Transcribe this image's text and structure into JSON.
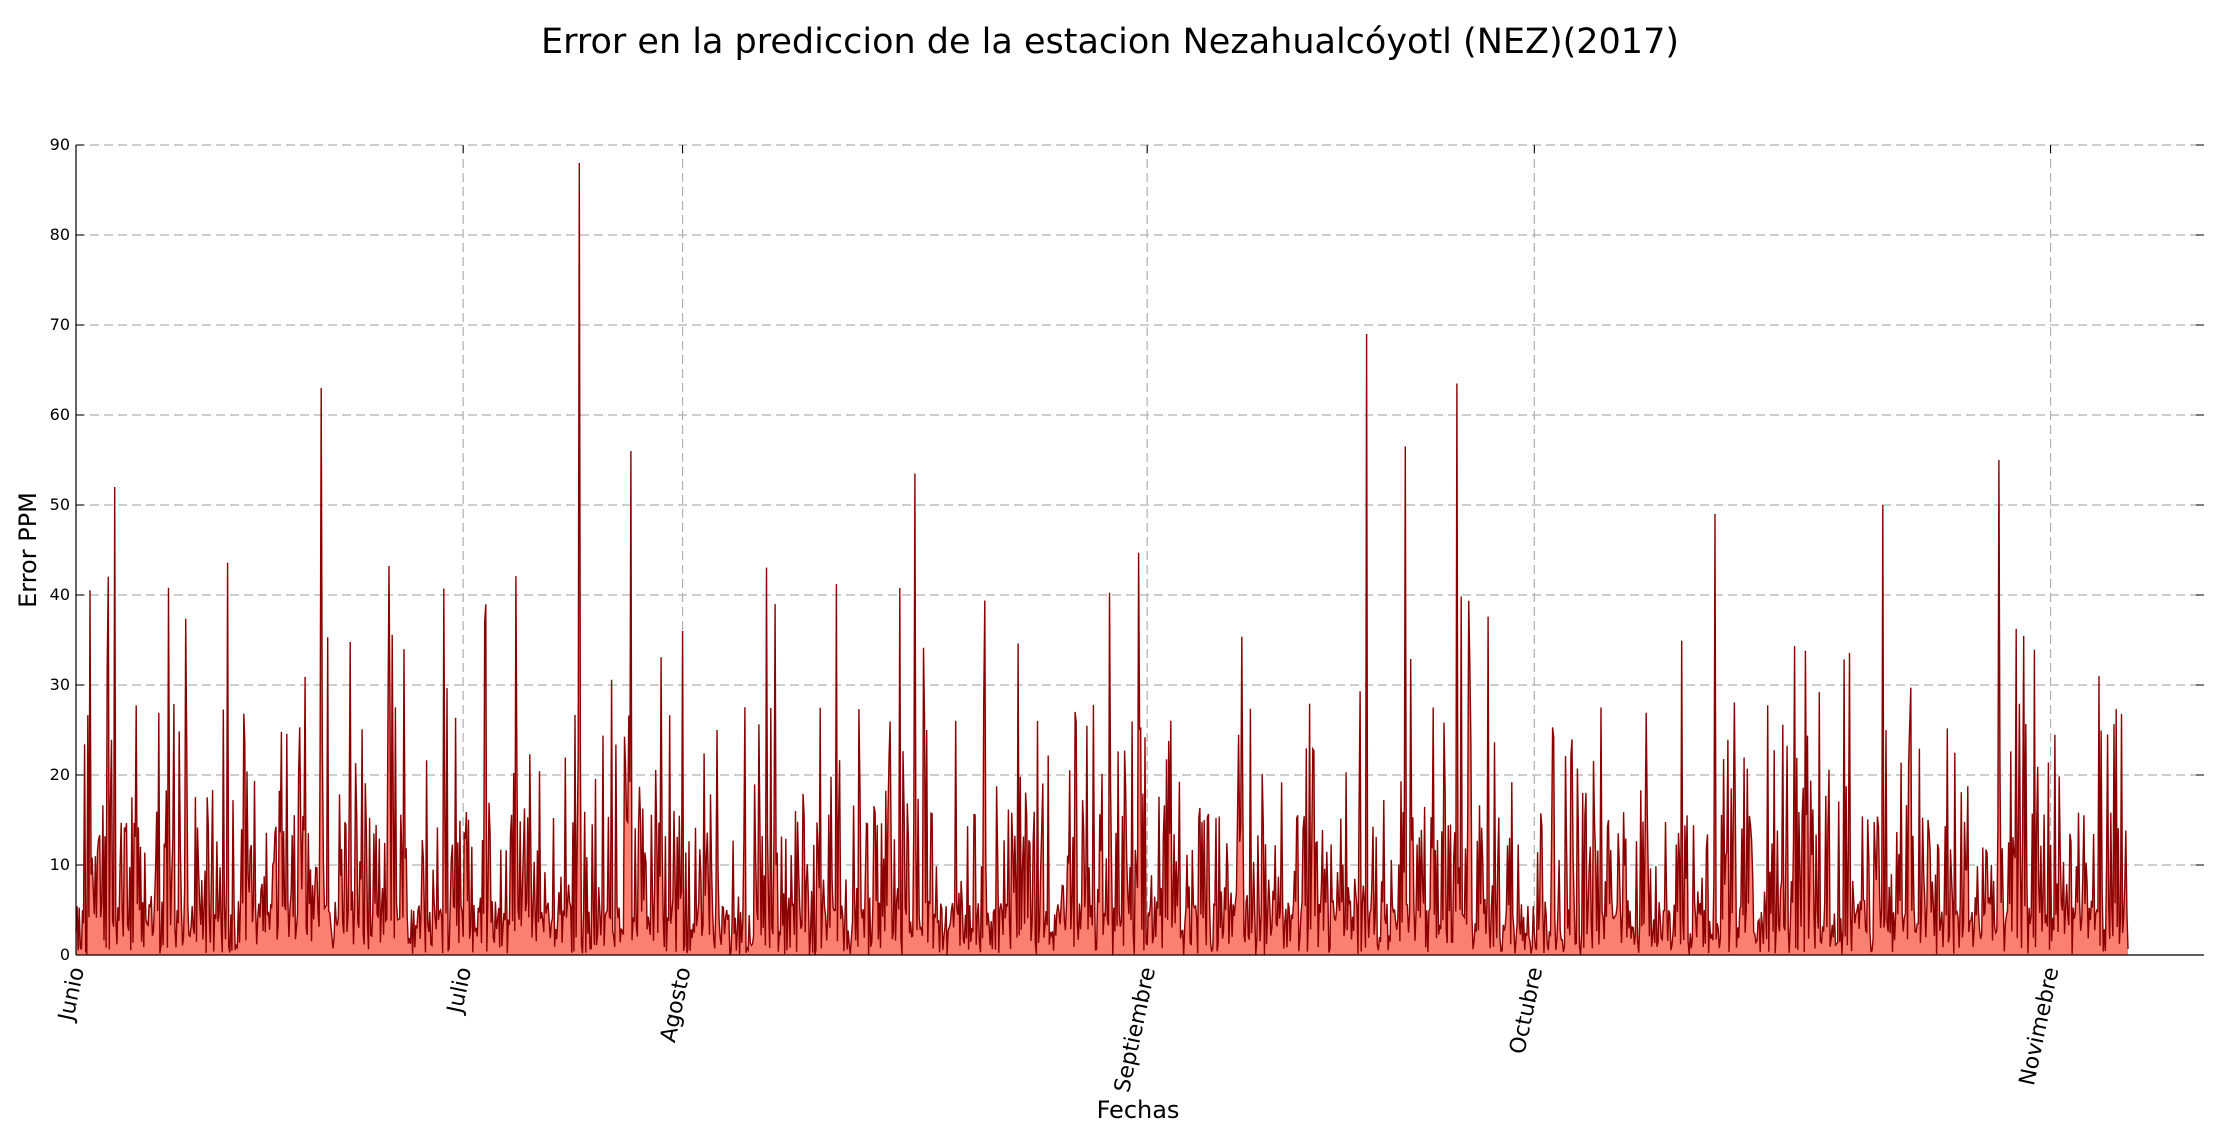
{
  "chart_data": {
    "type": "area",
    "title": "Error en la prediccion de la estacion Nezahualcóyotl (NEZ)(2017)",
    "xlabel": "Fechas",
    "ylabel": "Error PPM",
    "ylim": [
      0,
      90
    ],
    "yticks": [
      "0",
      "10",
      "20",
      "30",
      "40",
      "50",
      "60",
      "70",
      "80",
      "90"
    ],
    "x_ticks": [
      {
        "label": "Junio",
        "date": "2017-06-01"
      },
      {
        "label": "Julio",
        "date": "2017-07-01"
      },
      {
        "label": "Agosto",
        "date": "2017-07-18"
      },
      {
        "label": "Septiembre",
        "date": "2017-08-23"
      },
      {
        "label": "Octubre",
        "date": "2017-09-22"
      },
      {
        "label": "Novimebre",
        "date": "2017-11-01"
      }
    ],
    "x_range": [
      "2017-06-01",
      "2017-11-07"
    ],
    "line_color": "#8b0000",
    "fill_color": "#fa8072",
    "grid": true,
    "series": [
      {
        "values_approx_peaks": [
          {
            "date": "2017-06-04",
            "value": 52
          },
          {
            "date": "2017-06-20",
            "value": 63
          },
          {
            "date": "2017-07-10",
            "value": 88
          },
          {
            "date": "2017-07-14",
            "value": 56
          },
          {
            "date": "2017-08-05",
            "value": 53.5
          },
          {
            "date": "2017-09-09",
            "value": 69
          },
          {
            "date": "2017-09-12",
            "value": 56.5
          },
          {
            "date": "2017-09-16",
            "value": 63.5
          },
          {
            "date": "2017-10-06",
            "value": 49
          },
          {
            "date": "2017-10-19",
            "value": 50
          },
          {
            "date": "2017-10-28",
            "value": 55
          }
        ]
      }
    ]
  }
}
